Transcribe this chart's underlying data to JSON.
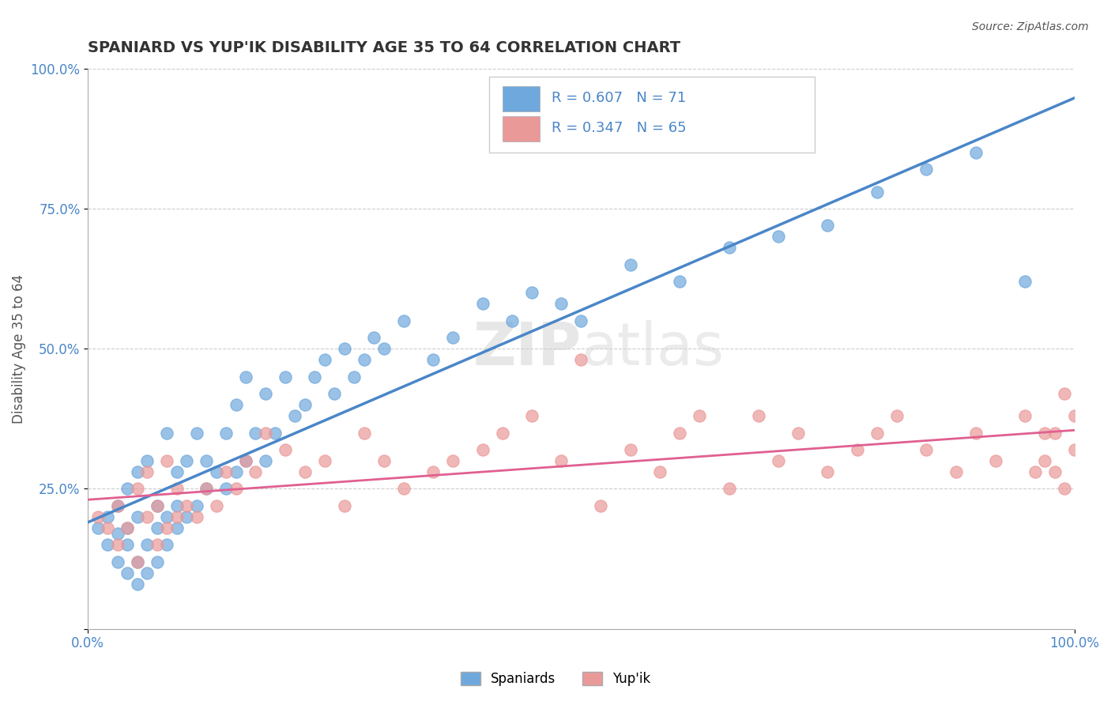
{
  "title": "SPANIARD VS YUP'IK DISABILITY AGE 35 TO 64 CORRELATION CHART",
  "source": "Source: ZipAtlas.com",
  "xlabel": "",
  "ylabel": "Disability Age 35 to 64",
  "ylim": [
    0,
    1.0
  ],
  "xlim": [
    0,
    1.0
  ],
  "blue_R": 0.607,
  "blue_N": 71,
  "pink_R": 0.347,
  "pink_N": 65,
  "blue_color": "#6fa8dc",
  "pink_color": "#ea9999",
  "blue_line_color": "#4a86c8",
  "pink_line_color": "#e06090",
  "background_color": "#ffffff",
  "watermark_zip": "ZIP",
  "watermark_atlas": "atlas",
  "blue_scatter_x": [
    0.01,
    0.02,
    0.02,
    0.03,
    0.03,
    0.03,
    0.04,
    0.04,
    0.04,
    0.04,
    0.05,
    0.05,
    0.05,
    0.05,
    0.06,
    0.06,
    0.06,
    0.07,
    0.07,
    0.07,
    0.08,
    0.08,
    0.08,
    0.09,
    0.09,
    0.09,
    0.1,
    0.1,
    0.11,
    0.11,
    0.12,
    0.12,
    0.13,
    0.14,
    0.14,
    0.15,
    0.15,
    0.16,
    0.16,
    0.17,
    0.18,
    0.18,
    0.19,
    0.2,
    0.21,
    0.22,
    0.23,
    0.24,
    0.25,
    0.26,
    0.27,
    0.28,
    0.29,
    0.3,
    0.32,
    0.35,
    0.37,
    0.4,
    0.43,
    0.45,
    0.48,
    0.5,
    0.55,
    0.6,
    0.65,
    0.7,
    0.75,
    0.8,
    0.85,
    0.9,
    0.95
  ],
  "blue_scatter_y": [
    0.18,
    0.15,
    0.2,
    0.12,
    0.17,
    0.22,
    0.1,
    0.15,
    0.18,
    0.25,
    0.08,
    0.12,
    0.2,
    0.28,
    0.1,
    0.15,
    0.3,
    0.12,
    0.18,
    0.22,
    0.15,
    0.2,
    0.35,
    0.18,
    0.22,
    0.28,
    0.2,
    0.3,
    0.22,
    0.35,
    0.25,
    0.3,
    0.28,
    0.25,
    0.35,
    0.28,
    0.4,
    0.3,
    0.45,
    0.35,
    0.3,
    0.42,
    0.35,
    0.45,
    0.38,
    0.4,
    0.45,
    0.48,
    0.42,
    0.5,
    0.45,
    0.48,
    0.52,
    0.5,
    0.55,
    0.48,
    0.52,
    0.58,
    0.55,
    0.6,
    0.58,
    0.55,
    0.65,
    0.62,
    0.68,
    0.7,
    0.72,
    0.78,
    0.82,
    0.85,
    0.62
  ],
  "pink_scatter_x": [
    0.01,
    0.02,
    0.03,
    0.03,
    0.04,
    0.05,
    0.05,
    0.06,
    0.06,
    0.07,
    0.07,
    0.08,
    0.08,
    0.09,
    0.09,
    0.1,
    0.11,
    0.12,
    0.13,
    0.14,
    0.15,
    0.16,
    0.17,
    0.18,
    0.2,
    0.22,
    0.24,
    0.26,
    0.28,
    0.3,
    0.32,
    0.35,
    0.37,
    0.4,
    0.42,
    0.45,
    0.48,
    0.5,
    0.52,
    0.55,
    0.58,
    0.6,
    0.62,
    0.65,
    0.68,
    0.7,
    0.72,
    0.75,
    0.78,
    0.8,
    0.82,
    0.85,
    0.88,
    0.9,
    0.92,
    0.95,
    0.96,
    0.97,
    0.98,
    0.99,
    0.99,
    1.0,
    1.0,
    0.98,
    0.97
  ],
  "pink_scatter_y": [
    0.2,
    0.18,
    0.15,
    0.22,
    0.18,
    0.12,
    0.25,
    0.2,
    0.28,
    0.15,
    0.22,
    0.18,
    0.3,
    0.2,
    0.25,
    0.22,
    0.2,
    0.25,
    0.22,
    0.28,
    0.25,
    0.3,
    0.28,
    0.35,
    0.32,
    0.28,
    0.3,
    0.22,
    0.35,
    0.3,
    0.25,
    0.28,
    0.3,
    0.32,
    0.35,
    0.38,
    0.3,
    0.48,
    0.22,
    0.32,
    0.28,
    0.35,
    0.38,
    0.25,
    0.38,
    0.3,
    0.35,
    0.28,
    0.32,
    0.35,
    0.38,
    0.32,
    0.28,
    0.35,
    0.3,
    0.38,
    0.28,
    0.3,
    0.35,
    0.42,
    0.25,
    0.38,
    0.32,
    0.28,
    0.35
  ]
}
